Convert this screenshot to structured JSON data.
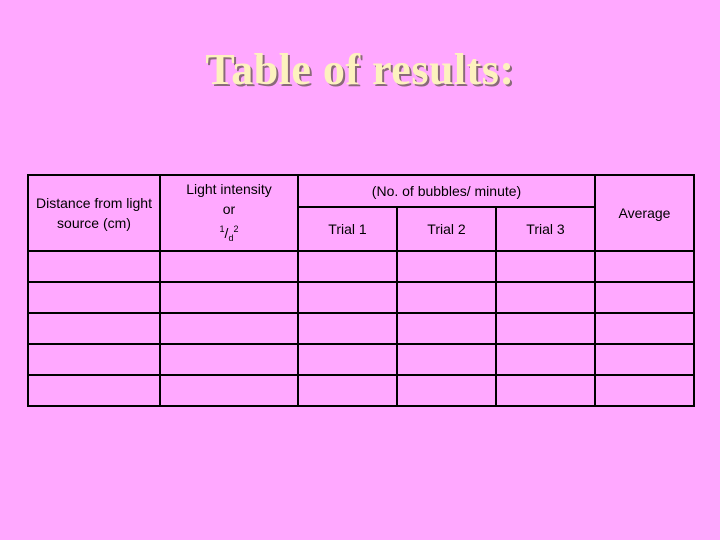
{
  "title": "Table of results:",
  "table": {
    "headers": {
      "distance": "Distance from light source (cm)",
      "intensity_line1": "Light intensity",
      "intensity_line2": "or",
      "intensity_num": "1",
      "intensity_slash": "/",
      "intensity_den": "d",
      "intensity_exp": "2",
      "bubbles_group": "(No. of bubbles/ minute)",
      "trial1": "Trial 1",
      "trial2": "Trial 2",
      "trial3": "Trial 3",
      "average": "Average"
    },
    "rows": [
      [
        "",
        "",
        "",
        "",
        "",
        ""
      ],
      [
        "",
        "",
        "",
        "",
        "",
        ""
      ],
      [
        "",
        "",
        "",
        "",
        "",
        ""
      ],
      [
        "",
        "",
        "",
        "",
        "",
        ""
      ],
      [
        "",
        "",
        "",
        "",
        "",
        ""
      ]
    ]
  }
}
